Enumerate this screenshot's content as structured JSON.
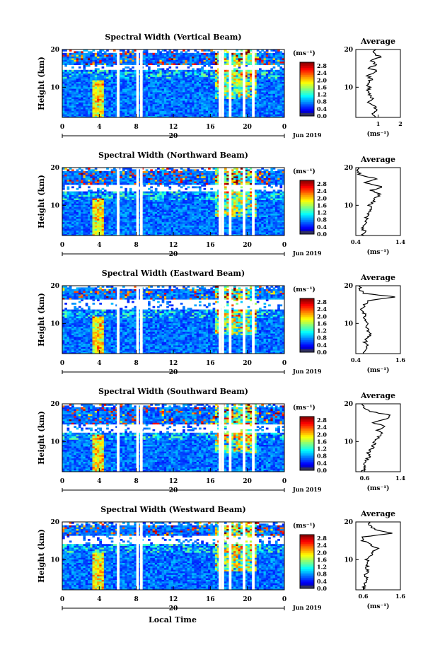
{
  "figure": {
    "xlabel": "Local Time",
    "colors": {
      "jet": [
        "#000080",
        "#0000ff",
        "#0080ff",
        "#00ffff",
        "#80ff80",
        "#ffff00",
        "#ff8000",
        "#ff0000",
        "#800000"
      ],
      "background": "#ffffff",
      "axis": "#000000",
      "avg_line": "#000000"
    }
  },
  "chart_data": [
    {
      "type": "heatmap",
      "title": "Spectral Width (Vertical Beam)",
      "ylabel": "Height (km)",
      "xlim": [
        0,
        24
      ],
      "ylim": [
        2,
        20
      ],
      "x_ticks": [
        "0",
        "4",
        "8",
        "12",
        "16",
        "20",
        "0"
      ],
      "y_ticks": [
        "10",
        "20"
      ],
      "date_label": "20",
      "date_right": "Jun 2019",
      "colorbar": {
        "unit": "(ms⁻¹)",
        "ticks": [
          "0.0",
          "0.4",
          "0.8",
          "1.2",
          "1.6",
          "2.0",
          "2.4",
          "2.8"
        ],
        "range": [
          0.0,
          3.0
        ]
      },
      "gaps": [
        5.9,
        8.0,
        8.4,
        16.9,
        17.2,
        18.0,
        19.5,
        20.5
      ],
      "upper_gap": [
        14.5,
        16.0
      ],
      "average": {
        "title": "Average",
        "unit": "(ms⁻¹)",
        "xlim": [
          0,
          2
        ],
        "x_ticks": [
          {
            "v": 1,
            "l": "1"
          },
          {
            "v": 2,
            "l": "2"
          }
        ],
        "y_ticks": [
          "10",
          "20"
        ],
        "profile": [
          [
            2,
            0.9
          ],
          [
            3,
            0.8
          ],
          [
            4,
            0.9
          ],
          [
            5,
            0.85
          ],
          [
            6,
            0.6
          ],
          [
            7,
            0.75
          ],
          [
            8,
            0.6
          ],
          [
            9,
            0.55
          ],
          [
            10,
            0.6
          ],
          [
            11,
            0.5
          ],
          [
            12,
            0.7
          ],
          [
            13,
            0.55
          ],
          [
            14,
            0.8
          ],
          [
            14.5,
            1.0
          ],
          [
            15,
            0.6
          ],
          [
            16,
            0.9
          ],
          [
            17,
            0.7
          ],
          [
            18,
            1.1
          ],
          [
            19,
            0.8
          ],
          [
            20,
            0.9
          ]
        ]
      }
    },
    {
      "type": "heatmap",
      "title": "Spectral Width (Northward Beam)",
      "ylabel": "Height (km)",
      "xlim": [
        0,
        24
      ],
      "ylim": [
        2,
        20
      ],
      "x_ticks": [
        "0",
        "4",
        "8",
        "12",
        "16",
        "20",
        "0"
      ],
      "y_ticks": [
        "10",
        "20"
      ],
      "date_label": "20",
      "date_right": "Jun 2019",
      "colorbar": {
        "unit": "(ms⁻¹)",
        "ticks": [
          "0.0",
          "0.4",
          "0.8",
          "1.2",
          "1.6",
          "2.0",
          "2.4",
          "2.8"
        ],
        "range": [
          0.0,
          3.0
        ]
      },
      "gaps": [
        5.9,
        8.0,
        8.4,
        16.9,
        17.2,
        18.0,
        19.5,
        20.5
      ],
      "upper_gap": [
        13.5,
        15.5
      ],
      "average": {
        "title": "Average",
        "unit": "(ms⁻¹)",
        "xlim": [
          0.4,
          1.4
        ],
        "x_ticks": [
          {
            "v": 0.4,
            "l": "0.4"
          },
          {
            "v": 1.4,
            "l": "1.4"
          }
        ],
        "y_ticks": [
          "10",
          "20"
        ],
        "profile": [
          [
            2,
            0.55
          ],
          [
            3,
            0.6
          ],
          [
            4,
            0.55
          ],
          [
            5,
            0.6
          ],
          [
            6,
            0.62
          ],
          [
            7,
            0.65
          ],
          [
            8,
            0.7
          ],
          [
            9,
            0.75
          ],
          [
            10,
            0.7
          ],
          [
            11,
            0.8
          ],
          [
            12,
            0.85
          ],
          [
            13,
            0.95
          ],
          [
            14,
            0.75
          ],
          [
            15,
            1.0
          ],
          [
            16,
            0.6
          ],
          [
            17,
            0.9
          ],
          [
            18,
            0.5
          ],
          [
            19,
            0.45
          ],
          [
            20,
            0.45
          ]
        ]
      }
    },
    {
      "type": "heatmap",
      "title": "Spectral Width (Eastward Beam)",
      "ylabel": "Height (km)",
      "xlim": [
        0,
        24
      ],
      "ylim": [
        2,
        20
      ],
      "x_ticks": [
        "0",
        "4",
        "8",
        "12",
        "16",
        "20",
        "0"
      ],
      "y_ticks": [
        "10",
        "20"
      ],
      "date_label": "20",
      "date_right": "Jun 2019",
      "colorbar": {
        "unit": "(ms⁻¹)",
        "ticks": [
          "0.0",
          "0.4",
          "0.8",
          "1.2",
          "1.6",
          "2.0",
          "2.4",
          "2.8"
        ],
        "range": [
          0.0,
          3.0
        ]
      },
      "gaps": [
        5.9,
        8.0,
        8.4,
        16.9,
        17.2,
        18.0,
        19.5,
        20.5
      ],
      "upper_gap": [
        13.5,
        16.5
      ],
      "average": {
        "title": "Average",
        "unit": "(ms⁻¹)",
        "xlim": [
          0.4,
          1.6
        ],
        "x_ticks": [
          {
            "v": 0.4,
            "l": "0.4"
          },
          {
            "v": 1.6,
            "l": "1.6"
          }
        ],
        "y_ticks": [
          "10",
          "20"
        ],
        "profile": [
          [
            2,
            0.6
          ],
          [
            3,
            0.62
          ],
          [
            4,
            0.7
          ],
          [
            5,
            0.65
          ],
          [
            6,
            0.7
          ],
          [
            7,
            0.8
          ],
          [
            8,
            0.72
          ],
          [
            9,
            0.68
          ],
          [
            10,
            0.7
          ],
          [
            11,
            0.62
          ],
          [
            12,
            0.65
          ],
          [
            13,
            0.6
          ],
          [
            14,
            0.55
          ],
          [
            15,
            0.65
          ],
          [
            16,
            0.7
          ],
          [
            17,
            1.5
          ],
          [
            18,
            0.6
          ],
          [
            19,
            0.5
          ],
          [
            20,
            0.5
          ]
        ]
      }
    },
    {
      "type": "heatmap",
      "title": "Spectral Width (Southward Beam)",
      "ylabel": "Height (km)",
      "xlim": [
        0,
        24
      ],
      "ylim": [
        2,
        20
      ],
      "x_ticks": [
        "0",
        "4",
        "8",
        "12",
        "16",
        "20",
        "0"
      ],
      "y_ticks": [
        "10",
        "20"
      ],
      "date_label": "20",
      "date_right": "Jun 2019",
      "colorbar": {
        "unit": "(ms⁻¹)",
        "ticks": [
          "0.0",
          "0.4",
          "0.8",
          "1.2",
          "1.6",
          "2.0",
          "2.4",
          "2.8"
        ],
        "range": [
          0.0,
          3.0
        ]
      },
      "gaps": [
        5.9,
        8.0,
        8.4,
        16.9,
        17.2,
        18.0,
        19.5,
        20.5
      ],
      "upper_gap": [
        12.5,
        14.5
      ],
      "average": {
        "title": "Average",
        "unit": "(ms⁻¹)",
        "xlim": [
          0.4,
          1.4
        ],
        "x_ticks": [
          {
            "v": 0.6,
            "l": "0.6"
          },
          {
            "v": 1.4,
            "l": "1.4"
          }
        ],
        "y_ticks": [
          "10",
          "20"
        ],
        "profile": [
          [
            2,
            0.55
          ],
          [
            3,
            0.6
          ],
          [
            4,
            0.58
          ],
          [
            5,
            0.62
          ],
          [
            6,
            0.7
          ],
          [
            7,
            0.68
          ],
          [
            8,
            0.75
          ],
          [
            9,
            0.8
          ],
          [
            10,
            0.82
          ],
          [
            11,
            0.9
          ],
          [
            12,
            1.0
          ],
          [
            13,
            0.9
          ],
          [
            14,
            1.05
          ],
          [
            15,
            0.8
          ],
          [
            16,
            1.1
          ],
          [
            17,
            1.2
          ],
          [
            18,
            0.7
          ],
          [
            19,
            0.6
          ],
          [
            20,
            0.55
          ]
        ]
      }
    },
    {
      "type": "heatmap",
      "title": "Spectral Width (Westward Beam)",
      "ylabel": "Height (km)",
      "xlim": [
        0,
        24
      ],
      "ylim": [
        2,
        20
      ],
      "x_ticks": [
        "0",
        "4",
        "8",
        "12",
        "16",
        "20",
        "0"
      ],
      "y_ticks": [
        "10",
        "20"
      ],
      "date_label": "20",
      "date_right": "Jun 2019",
      "colorbar": {
        "unit": "(ms⁻¹)",
        "ticks": [
          "0.0",
          "0.4",
          "0.8",
          "1.2",
          "1.6",
          "2.0",
          "2.4",
          "2.8"
        ],
        "range": [
          0.0,
          3.0
        ]
      },
      "gaps": [
        5.9,
        8.0,
        8.4,
        16.9,
        17.2,
        18.0,
        19.5,
        20.5
      ],
      "upper_gap": [
        14.0,
        16.5
      ],
      "average": {
        "title": "Average",
        "unit": "(ms⁻¹)",
        "xlim": [
          0.4,
          1.6
        ],
        "x_ticks": [
          {
            "v": 0.6,
            "l": "0.6"
          },
          {
            "v": 1.6,
            "l": "1.6"
          }
        ],
        "y_ticks": [
          "10",
          "20"
        ],
        "profile": [
          [
            2,
            0.6
          ],
          [
            3,
            0.62
          ],
          [
            4,
            0.65
          ],
          [
            5,
            0.7
          ],
          [
            6,
            0.65
          ],
          [
            7,
            0.72
          ],
          [
            8,
            0.7
          ],
          [
            9,
            0.75
          ],
          [
            10,
            0.7
          ],
          [
            11,
            0.8
          ],
          [
            12,
            0.85
          ],
          [
            13,
            1.0
          ],
          [
            14,
            0.8
          ],
          [
            15,
            0.6
          ],
          [
            16,
            0.55
          ],
          [
            17,
            1.4
          ],
          [
            18,
            0.9
          ],
          [
            19,
            0.8
          ],
          [
            20,
            0.75
          ]
        ]
      }
    }
  ]
}
